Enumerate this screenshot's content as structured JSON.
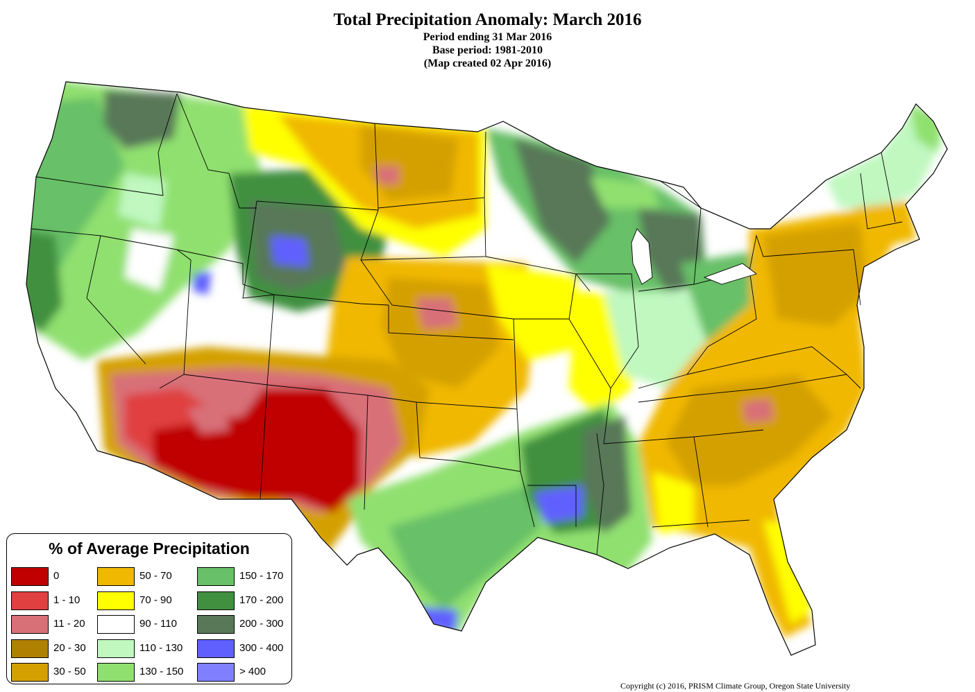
{
  "header": {
    "title": "Total Precipitation Anomaly: March 2016",
    "period": "Period ending 31 Mar 2016",
    "base": "Base period: 1981-2010",
    "created": "(Map created 02 Apr 2016)"
  },
  "legend": {
    "title": "% of Average Precipitation",
    "classes": [
      {
        "label": "0",
        "color": "#c00000"
      },
      {
        "label": "1 - 10",
        "color": "#e04040"
      },
      {
        "label": "11 - 20",
        "color": "#d87078"
      },
      {
        "label": "20 - 30",
        "color": "#b08000"
      },
      {
        "label": "30 - 50",
        "color": "#d4a000"
      },
      {
        "label": "50 - 70",
        "color": "#f0b800"
      },
      {
        "label": "70 - 90",
        "color": "#ffff00"
      },
      {
        "label": "90 - 110",
        "color": "#ffffff"
      },
      {
        "label": "110 - 130",
        "color": "#c0f8c0"
      },
      {
        "label": "130 - 150",
        "color": "#90e070"
      },
      {
        "label": "150 - 170",
        "color": "#68c068"
      },
      {
        "label": "170 - 200",
        "color": "#409040"
      },
      {
        "label": "200 - 300",
        "color": "#587858"
      },
      {
        "label": "300 - 400",
        "color": "#6060ff"
      },
      {
        "label": "> 400",
        "color": "#8080ff"
      }
    ]
  },
  "footer": {
    "copyright": "Copyright (c) 2016, PRISM Climate Group, Oregon State University"
  }
}
